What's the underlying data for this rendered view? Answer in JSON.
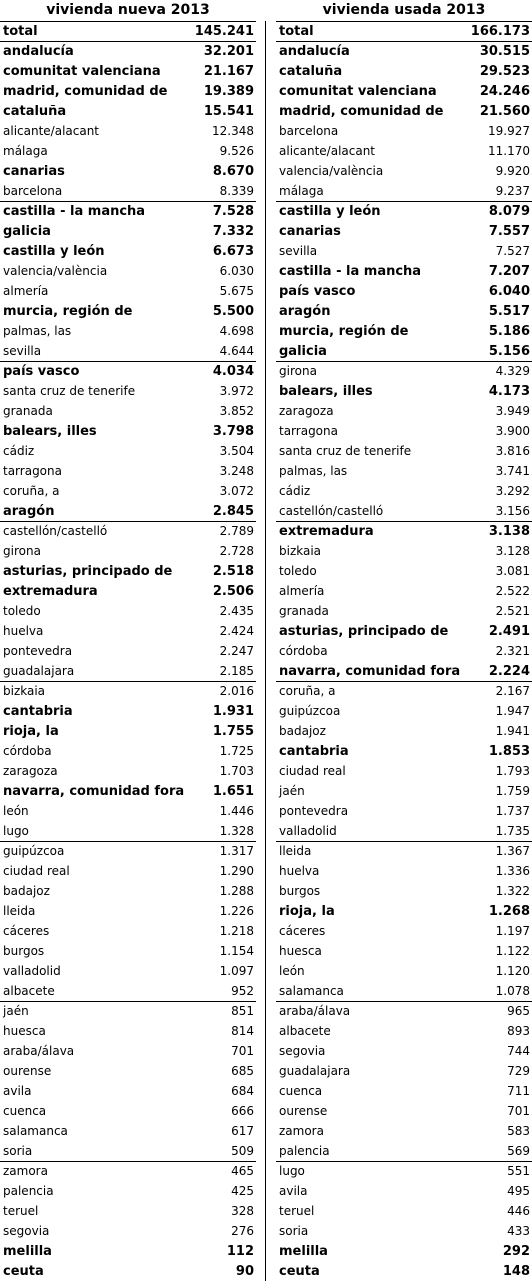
{
  "left": {
    "title": "vivienda nueva 2013",
    "rows": [
      {
        "name": "total",
        "value": "145.241",
        "bold": true
      },
      {
        "name": "andalucía",
        "value": "32.201",
        "bold": true
      },
      {
        "name": "comunitat valenciana",
        "value": "21.167",
        "bold": true
      },
      {
        "name": "madrid, comunidad de",
        "value": "19.389",
        "bold": true
      },
      {
        "name": "cataluña",
        "value": "15.541",
        "bold": true
      },
      {
        "name": "alicante/alacant",
        "value": "12.348",
        "bold": false
      },
      {
        "name": "málaga",
        "value": "9.526",
        "bold": false
      },
      {
        "name": "canarias",
        "value": "8.670",
        "bold": true
      },
      {
        "name": "barcelona",
        "value": "8.339",
        "bold": false
      },
      {
        "name": "castilla - la mancha",
        "value": "7.528",
        "bold": true
      },
      {
        "name": "galicia",
        "value": "7.332",
        "bold": true
      },
      {
        "name": "castilla y león",
        "value": "6.673",
        "bold": true
      },
      {
        "name": "valencia/valència",
        "value": "6.030",
        "bold": false
      },
      {
        "name": "almería",
        "value": "5.675",
        "bold": false
      },
      {
        "name": "murcia, región de",
        "value": "5.500",
        "bold": true
      },
      {
        "name": "palmas, las",
        "value": "4.698",
        "bold": false
      },
      {
        "name": "sevilla",
        "value": "4.644",
        "bold": false
      },
      {
        "name": "país vasco",
        "value": "4.034",
        "bold": true
      },
      {
        "name": "santa cruz de tenerife",
        "value": "3.972",
        "bold": false
      },
      {
        "name": "granada",
        "value": "3.852",
        "bold": false
      },
      {
        "name": "balears, illes",
        "value": "3.798",
        "bold": true
      },
      {
        "name": "cádiz",
        "value": "3.504",
        "bold": false
      },
      {
        "name": "tarragona",
        "value": "3.248",
        "bold": false
      },
      {
        "name": "coruña, a",
        "value": "3.072",
        "bold": false
      },
      {
        "name": "aragón",
        "value": "2.845",
        "bold": true
      },
      {
        "name": "castellón/castelló",
        "value": "2.789",
        "bold": false
      },
      {
        "name": "girona",
        "value": "2.728",
        "bold": false
      },
      {
        "name": "asturias, principado de",
        "value": "2.518",
        "bold": true
      },
      {
        "name": "extremadura",
        "value": "2.506",
        "bold": true
      },
      {
        "name": "toledo",
        "value": "2.435",
        "bold": false
      },
      {
        "name": "huelva",
        "value": "2.424",
        "bold": false
      },
      {
        "name": "pontevedra",
        "value": "2.247",
        "bold": false
      },
      {
        "name": "guadalajara",
        "value": "2.185",
        "bold": false
      },
      {
        "name": "bizkaia",
        "value": "2.016",
        "bold": false
      },
      {
        "name": "cantabria",
        "value": "1.931",
        "bold": true
      },
      {
        "name": "rioja, la",
        "value": "1.755",
        "bold": true
      },
      {
        "name": "córdoba",
        "value": "1.725",
        "bold": false
      },
      {
        "name": "zaragoza",
        "value": "1.703",
        "bold": false
      },
      {
        "name": "navarra, comunidad foral de",
        "value": "1.651",
        "bold": true
      },
      {
        "name": "león",
        "value": "1.446",
        "bold": false
      },
      {
        "name": "lugo",
        "value": "1.328",
        "bold": false
      },
      {
        "name": "guipúzcoa",
        "value": "1.317",
        "bold": false
      },
      {
        "name": "ciudad real",
        "value": "1.290",
        "bold": false
      },
      {
        "name": "badajoz",
        "value": "1.288",
        "bold": false
      },
      {
        "name": "lleida",
        "value": "1.226",
        "bold": false
      },
      {
        "name": "cáceres",
        "value": "1.218",
        "bold": false
      },
      {
        "name": "burgos",
        "value": "1.154",
        "bold": false
      },
      {
        "name": "valladolid",
        "value": "1.097",
        "bold": false
      },
      {
        "name": "albacete",
        "value": "952",
        "bold": false
      },
      {
        "name": "jaén",
        "value": "851",
        "bold": false
      },
      {
        "name": "huesca",
        "value": "814",
        "bold": false
      },
      {
        "name": "araba/álava",
        "value": "701",
        "bold": false
      },
      {
        "name": "ourense",
        "value": "685",
        "bold": false
      },
      {
        "name": "avila",
        "value": "684",
        "bold": false
      },
      {
        "name": "cuenca",
        "value": "666",
        "bold": false
      },
      {
        "name": "salamanca",
        "value": "617",
        "bold": false
      },
      {
        "name": "soria",
        "value": "509",
        "bold": false
      },
      {
        "name": "zamora",
        "value": "465",
        "bold": false
      },
      {
        "name": "palencia",
        "value": "425",
        "bold": false
      },
      {
        "name": "teruel",
        "value": "328",
        "bold": false
      },
      {
        "name": "segovia",
        "value": "276",
        "bold": false
      },
      {
        "name": "melilla",
        "value": "112",
        "bold": true
      },
      {
        "name": "ceuta",
        "value": "90",
        "bold": true
      }
    ]
  },
  "right": {
    "title": "vivienda usada 2013",
    "rows": [
      {
        "name": "total",
        "value": "166.173",
        "bold": true
      },
      {
        "name": "andalucía",
        "value": "30.515",
        "bold": true
      },
      {
        "name": "cataluña",
        "value": "29.523",
        "bold": true
      },
      {
        "name": "comunitat valenciana",
        "value": "24.246",
        "bold": true
      },
      {
        "name": "madrid, comunidad de",
        "value": "21.560",
        "bold": true
      },
      {
        "name": "barcelona",
        "value": "19.927",
        "bold": false
      },
      {
        "name": "alicante/alacant",
        "value": "11.170",
        "bold": false
      },
      {
        "name": "valencia/valència",
        "value": "9.920",
        "bold": false
      },
      {
        "name": "málaga",
        "value": "9.237",
        "bold": false
      },
      {
        "name": "castilla y león",
        "value": "8.079",
        "bold": true
      },
      {
        "name": "canarias",
        "value": "7.557",
        "bold": true
      },
      {
        "name": "sevilla",
        "value": "7.527",
        "bold": false
      },
      {
        "name": "castilla - la mancha",
        "value": "7.207",
        "bold": true
      },
      {
        "name": "país vasco",
        "value": "6.040",
        "bold": true
      },
      {
        "name": "aragón",
        "value": "5.517",
        "bold": true
      },
      {
        "name": "murcia, región de",
        "value": "5.186",
        "bold": true
      },
      {
        "name": "galicia",
        "value": "5.156",
        "bold": true
      },
      {
        "name": "girona",
        "value": "4.329",
        "bold": false
      },
      {
        "name": "balears, illes",
        "value": "4.173",
        "bold": true
      },
      {
        "name": "zaragoza",
        "value": "3.949",
        "bold": false
      },
      {
        "name": "tarragona",
        "value": "3.900",
        "bold": false
      },
      {
        "name": "santa cruz de tenerife",
        "value": "3.816",
        "bold": false
      },
      {
        "name": "palmas, las",
        "value": "3.741",
        "bold": false
      },
      {
        "name": "cádiz",
        "value": "3.292",
        "bold": false
      },
      {
        "name": "castellón/castelló",
        "value": "3.156",
        "bold": false
      },
      {
        "name": "extremadura",
        "value": "3.138",
        "bold": true
      },
      {
        "name": "bizkaia",
        "value": "3.128",
        "bold": false
      },
      {
        "name": "toledo",
        "value": "3.081",
        "bold": false
      },
      {
        "name": "almería",
        "value": "2.522",
        "bold": false
      },
      {
        "name": "granada",
        "value": "2.521",
        "bold": false
      },
      {
        "name": "asturias, principado de",
        "value": "2.491",
        "bold": true
      },
      {
        "name": "córdoba",
        "value": "2.321",
        "bold": false
      },
      {
        "name": "navarra, comunidad foral de",
        "value": "2.224",
        "bold": true
      },
      {
        "name": "coruña, a",
        "value": "2.167",
        "bold": false
      },
      {
        "name": "guipúzcoa",
        "value": "1.947",
        "bold": false
      },
      {
        "name": "badajoz",
        "value": "1.941",
        "bold": false
      },
      {
        "name": "cantabria",
        "value": "1.853",
        "bold": true
      },
      {
        "name": "ciudad real",
        "value": "1.793",
        "bold": false
      },
      {
        "name": "jaén",
        "value": "1.759",
        "bold": false
      },
      {
        "name": "pontevedra",
        "value": "1.737",
        "bold": false
      },
      {
        "name": "valladolid",
        "value": "1.735",
        "bold": false
      },
      {
        "name": "lleida",
        "value": "1.367",
        "bold": false
      },
      {
        "name": "huelva",
        "value": "1.336",
        "bold": false
      },
      {
        "name": "burgos",
        "value": "1.322",
        "bold": false
      },
      {
        "name": "rioja, la",
        "value": "1.268",
        "bold": true
      },
      {
        "name": "cáceres",
        "value": "1.197",
        "bold": false
      },
      {
        "name": "huesca",
        "value": "1.122",
        "bold": false
      },
      {
        "name": "león",
        "value": "1.120",
        "bold": false
      },
      {
        "name": "salamanca",
        "value": "1.078",
        "bold": false
      },
      {
        "name": "araba/álava",
        "value": "965",
        "bold": false
      },
      {
        "name": "albacete",
        "value": "893",
        "bold": false
      },
      {
        "name": "segovia",
        "value": "744",
        "bold": false
      },
      {
        "name": "guadalajara",
        "value": "729",
        "bold": false
      },
      {
        "name": "cuenca",
        "value": "711",
        "bold": false
      },
      {
        "name": "ourense",
        "value": "701",
        "bold": false
      },
      {
        "name": "zamora",
        "value": "583",
        "bold": false
      },
      {
        "name": "palencia",
        "value": "569",
        "bold": false
      },
      {
        "name": "lugo",
        "value": "551",
        "bold": false
      },
      {
        "name": "avila",
        "value": "495",
        "bold": false
      },
      {
        "name": "teruel",
        "value": "446",
        "bold": false
      },
      {
        "name": "soria",
        "value": "433",
        "bold": false
      },
      {
        "name": "melilla",
        "value": "292",
        "bold": true
      },
      {
        "name": "ceuta",
        "value": "148",
        "bold": true
      }
    ]
  }
}
